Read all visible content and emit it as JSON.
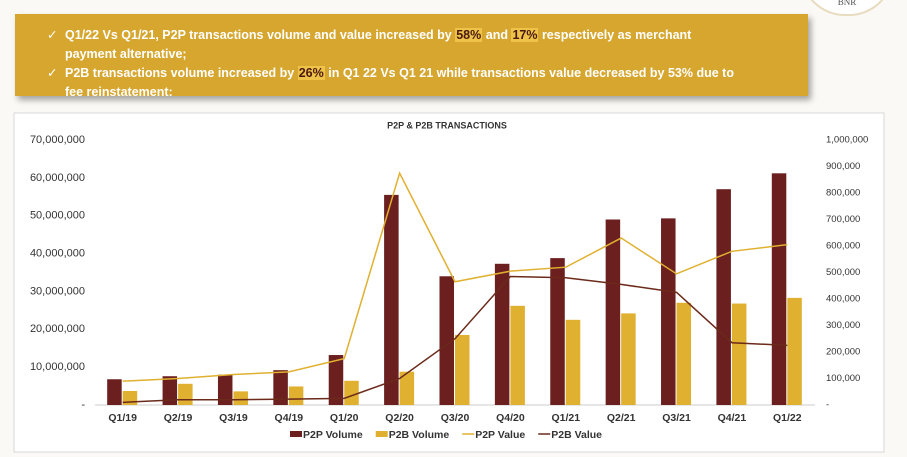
{
  "logo": "BNR",
  "header": {
    "bullets": [
      [
        "Q1/22 Vs Q1/21, P2P transactions volume and value increased by ",
        "58%",
        " and ",
        "17%",
        " respectively as merchant payment alternative;"
      ],
      [
        "P2B transactions volume increased by ",
        "26%",
        " in Q1 22 Vs Q1 21 while transactions value decreased by 53% due to fee reinstatement;"
      ]
    ]
  },
  "chart_data": {
    "type": "bar",
    "title": "P2P & P2B TRANSACTIONS",
    "categories": [
      "Q1/19",
      "Q2/19",
      "Q3/19",
      "Q4/19",
      "Q1/20",
      "Q2/20",
      "Q3/20",
      "Q4/20",
      "Q1/21",
      "Q2/21",
      "Q3/21",
      "Q4/21",
      "Q1/22"
    ],
    "series": [
      {
        "name": "P2P Volume",
        "type": "bar",
        "color": "#6b1f1f",
        "values": [
          6800000,
          7600000,
          8000000,
          9200000,
          13200000,
          55500000,
          34000000,
          37300000,
          38800000,
          49000000,
          49300000,
          57000000,
          61200000
        ]
      },
      {
        "name": "P2B Volume",
        "type": "bar",
        "color": "#e0b030",
        "values": [
          3700000,
          5600000,
          3600000,
          4900000,
          6400000,
          8800000,
          18500000,
          26200000,
          22500000,
          24200000,
          27000000,
          26800000,
          28300000
        ]
      },
      {
        "name": "P2P Value",
        "type": "line",
        "axis": "y2",
        "color": "#e0b030",
        "values": [
          90000,
          100000,
          115000,
          125000,
          175000,
          875000,
          465000,
          505000,
          520000,
          630000,
          495000,
          580000,
          605000
        ]
      },
      {
        "name": "P2B Value",
        "type": "line",
        "axis": "y2",
        "color": "#6b2a1a",
        "values": [
          10000,
          20000,
          20000,
          22000,
          25000,
          100000,
          250000,
          485000,
          480000,
          455000,
          425000,
          235000,
          225000
        ]
      }
    ],
    "ylim": [
      0,
      70000000
    ],
    "yticks": [
      {
        "value": 0,
        "label": "-"
      },
      {
        "value": 10000000,
        "label": "10,000,000"
      },
      {
        "value": 20000000,
        "label": "20,000,000"
      },
      {
        "value": 30000000,
        "label": "30,000,000"
      },
      {
        "value": 40000000,
        "label": "40,000,000"
      },
      {
        "value": 50000000,
        "label": "50,000,000"
      },
      {
        "value": 60000000,
        "label": "60,000,000"
      },
      {
        "value": 70000000,
        "label": "70,000,000"
      }
    ],
    "y2lim": [
      0,
      1000000
    ],
    "y2ticks": [
      {
        "value": 0,
        "label": "-"
      },
      {
        "value": 100000,
        "label": "100,000"
      },
      {
        "value": 200000,
        "label": "200,000"
      },
      {
        "value": 300000,
        "label": "300,000"
      },
      {
        "value": 400000,
        "label": "400,000"
      },
      {
        "value": 500000,
        "label": "500,000"
      },
      {
        "value": 600000,
        "label": "600,000"
      },
      {
        "value": 700000,
        "label": "700,000"
      },
      {
        "value": 800000,
        "label": "800,000"
      },
      {
        "value": 900000,
        "label": "900,000"
      },
      {
        "value": 1000000,
        "label": "1,000,000"
      }
    ],
    "legend": "bottom"
  }
}
